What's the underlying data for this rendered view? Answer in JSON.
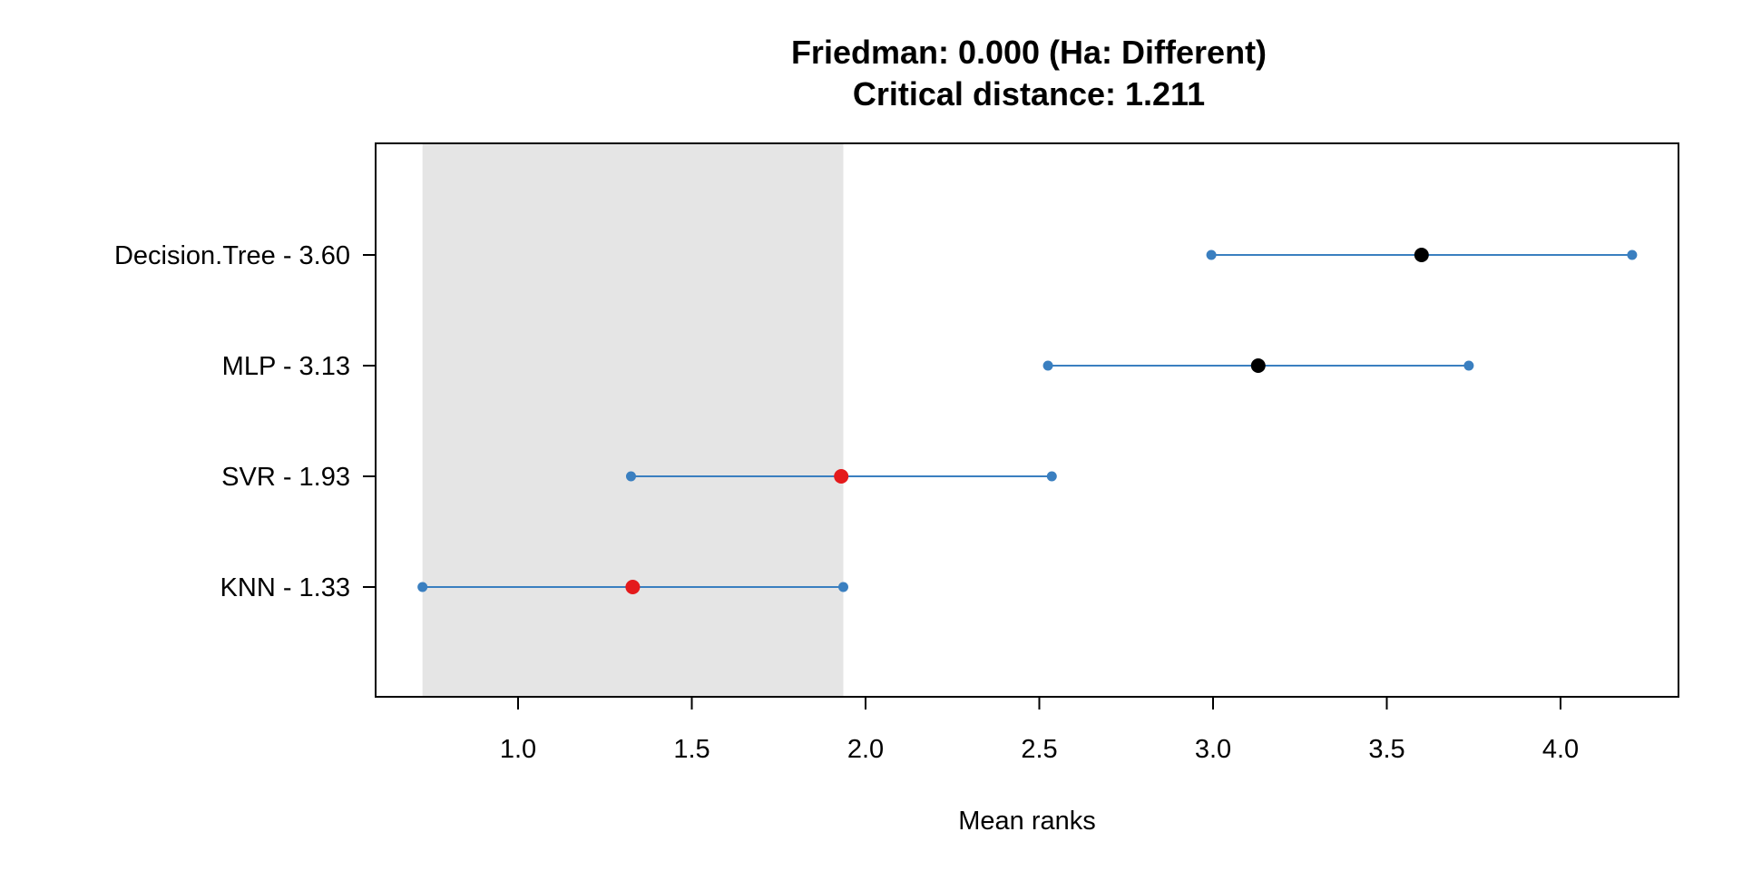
{
  "chart_data": {
    "type": "scatter",
    "title": "Friedman: 0.000 (Ha: Different)",
    "subtitle": "Critical distance: 1.211",
    "xlabel": "Mean ranks",
    "ylabel": "",
    "xlim": [
      0.6,
      4.35
    ],
    "xticks": [
      "1.0",
      "1.5",
      "2.0",
      "2.5",
      "3.0",
      "3.5",
      "4.0"
    ],
    "xtick_values": [
      1.0,
      1.5,
      2.0,
      2.5,
      3.0,
      3.5,
      4.0
    ],
    "critical_distance": 1.211,
    "shaded_region": [
      0.725,
      1.936
    ],
    "grid": false,
    "categories": [
      {
        "label": "Decision.Tree - 3.60",
        "mean": 3.6,
        "low": 2.995,
        "high": 4.206,
        "significant": false
      },
      {
        "label": "MLP - 3.13",
        "mean": 3.13,
        "low": 2.525,
        "high": 3.736,
        "significant": false
      },
      {
        "label": "SVR - 1.93",
        "mean": 1.93,
        "low": 1.325,
        "high": 2.536,
        "significant": true
      },
      {
        "label": "KNN - 1.33",
        "mean": 1.33,
        "low": 0.725,
        "high": 1.936,
        "significant": true
      }
    ],
    "colors": {
      "interval": "#3a7fc0",
      "mean_default": "#000000",
      "mean_significant": "#e41a1c",
      "shade": "#e5e5e5"
    }
  }
}
